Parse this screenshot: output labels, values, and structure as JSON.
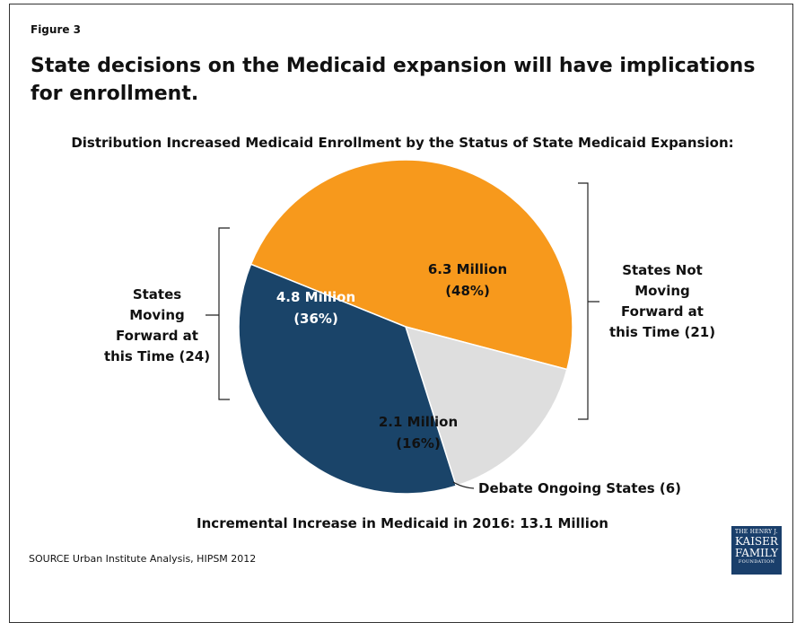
{
  "figure_label": "Figure 3",
  "headline": "State decisions on the Medicaid expansion will have implications for enrollment.",
  "chart_title": "Distribution Increased Medicaid Enrollment by the Status of State Medicaid Expansion:",
  "total_note": "Incremental Increase in Medicaid in 2016:  13.1 Million",
  "source": "SOURCE  Urban Institute Analysis, HIPSM 2012",
  "logo": {
    "line1": "THE HENRY J.",
    "line2": "KAISER",
    "line3": "FAMILY",
    "line4": "FOUNDATION"
  },
  "side_labels": {
    "moving": [
      "States",
      "Moving",
      "Forward at",
      "this Time (24)"
    ],
    "not_moving": [
      "States Not",
      "Moving",
      "Forward at",
      "this Time (21)"
    ],
    "debate": "Debate Ongoing States (6)"
  },
  "chart_data": {
    "type": "pie",
    "title": "Distribution Increased Medicaid Enrollment by the Status of State Medicaid Expansion:",
    "slices": [
      {
        "label": "States Not Moving Forward at this Time (21)",
        "value": 48,
        "amount": "6.3 Million",
        "pct": "(48%)",
        "color": "#F7991C"
      },
      {
        "label": "Debate Ongoing States (6)",
        "value": 16,
        "amount": "2.1 Million",
        "pct": "(16%)",
        "color": "#DEDEDE"
      },
      {
        "label": "States Moving Forward at this Time (24)",
        "value": 36,
        "amount": "4.8 Million",
        "pct": "(36%)",
        "color": "#1A4469"
      }
    ]
  }
}
